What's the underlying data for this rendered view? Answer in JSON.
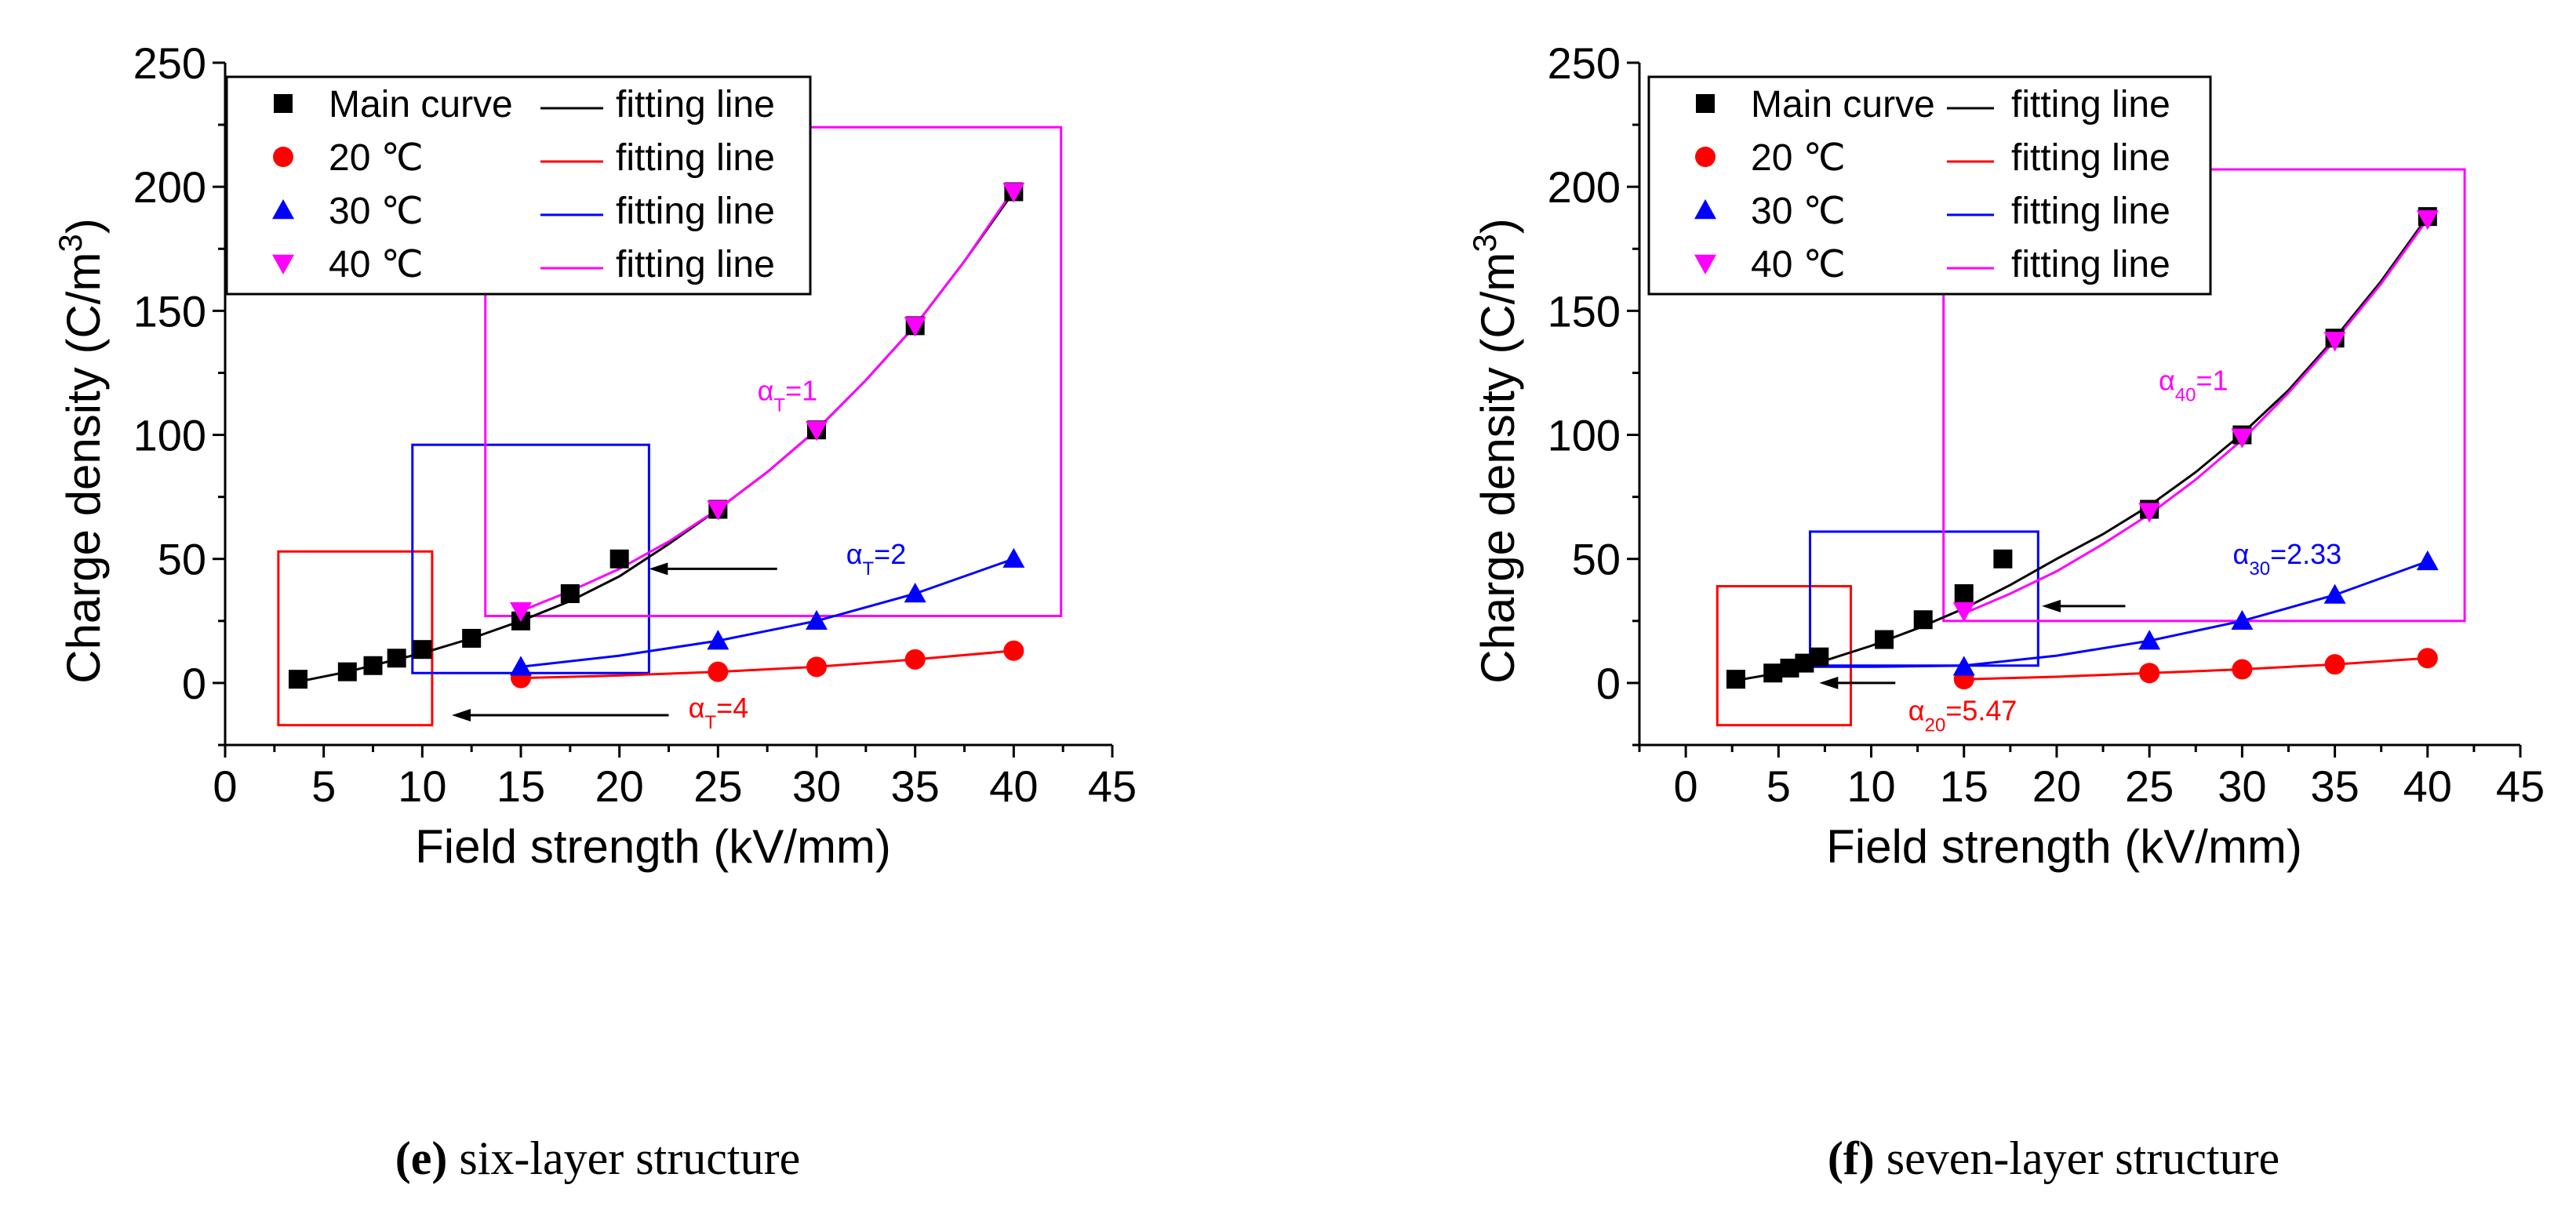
{
  "chart_data": [
    {
      "id": "e",
      "type": "scatter",
      "title": "",
      "xlabel": "Field strength (kV/mm)",
      "ylabel_main": "Charge density (C/m",
      "ylabel_sup": "3",
      "ylabel_close": ")",
      "xlim": [
        0,
        45
      ],
      "ylim": [
        -25,
        250
      ],
      "xticks": [
        0,
        5,
        10,
        15,
        20,
        25,
        30,
        35,
        40,
        45
      ],
      "yticks": [
        0,
        50,
        100,
        150,
        200,
        250
      ],
      "caption_label": "(e)",
      "caption_text": " six-layer structure",
      "legend": [
        {
          "marker_label": "Main curve",
          "line_label": "fitting line",
          "color": "#000000",
          "marker": "square"
        },
        {
          "marker_label": "20 ℃",
          "line_label": "fitting line",
          "color": "#ff0000",
          "marker": "circle"
        },
        {
          "marker_label": "30 ℃",
          "line_label": "fitting line",
          "color": "#0000ff",
          "marker": "triangle-up"
        },
        {
          "marker_label": "40 ℃",
          "line_label": "fitting line",
          "color": "#ff00ff",
          "marker": "triangle-down"
        }
      ],
      "series": [
        {
          "name": "Main curve",
          "color": "#000000",
          "marker": "square",
          "x": [
            3.7,
            6.2,
            7.5,
            8.7,
            10,
            12.5,
            15,
            17.5,
            20,
            25,
            30,
            35,
            40
          ],
          "y": [
            1.5,
            4.5,
            7,
            10,
            13.5,
            18,
            25,
            36,
            50,
            70,
            102,
            144,
            198
          ]
        },
        {
          "name": "20 ℃",
          "color": "#ff0000",
          "marker": "circle",
          "x": [
            15,
            25,
            30,
            35,
            40
          ],
          "y": [
            2,
            4.5,
            6.5,
            9.5,
            13
          ]
        },
        {
          "name": "30 ℃",
          "color": "#0000ff",
          "marker": "triangle-up",
          "x": [
            15,
            25,
            30,
            35,
            40
          ],
          "y": [
            6.5,
            17,
            25,
            36,
            50
          ]
        },
        {
          "name": "40 ℃",
          "color": "#ff00ff",
          "marker": "triangle-down",
          "x": [
            15,
            25,
            30,
            35,
            40
          ],
          "y": [
            29,
            70,
            102,
            144,
            198
          ]
        }
      ],
      "fits": [
        {
          "color": "#000000",
          "x": [
            3.7,
            6.2,
            8.7,
            10,
            12.5,
            15,
            17.5,
            20,
            22.5,
            25,
            27.5,
            30,
            32.5,
            35,
            37.5,
            40
          ],
          "y": [
            0.5,
            4.5,
            9.5,
            12,
            18,
            25,
            33,
            43,
            56,
            70,
            85,
            102,
            122,
            144,
            170,
            198
          ]
        },
        {
          "color": "#ff00ff",
          "x": [
            15,
            17.5,
            20,
            22.5,
            25,
            27.5,
            30,
            32.5,
            35,
            37.5,
            40
          ],
          "y": [
            29,
            37,
            46,
            57,
            70,
            85,
            102,
            122,
            144,
            170,
            199
          ]
        },
        {
          "color": "#0000ff",
          "x": [
            15,
            20,
            25,
            30,
            35,
            40
          ],
          "y": [
            6.5,
            11,
            17,
            25,
            36,
            50
          ]
        },
        {
          "color": "#ff0000",
          "x": [
            15,
            20,
            25,
            30,
            35,
            40
          ],
          "y": [
            2,
            3,
            4.5,
            6.5,
            9.5,
            13
          ]
        }
      ],
      "boxes": [
        {
          "color": "#ff0000",
          "x": [
            2.7,
            10.5
          ],
          "y": [
            -17,
            53
          ]
        },
        {
          "color": "#0000ff",
          "x": [
            9.5,
            21.5
          ],
          "y": [
            4,
            96
          ]
        },
        {
          "color": "#ff00ff",
          "x": [
            13.2,
            42.4
          ],
          "y": [
            27,
            224
          ]
        }
      ],
      "arrows": [
        {
          "color": "#000000",
          "from": [
            28,
            46
          ],
          "to": [
            21.5,
            46
          ]
        },
        {
          "color": "#000000",
          "from": [
            22.5,
            -13
          ],
          "to": [
            11.5,
            -13
          ]
        }
      ],
      "annotations": [
        {
          "base": "α",
          "sub": "T",
          "rest": "=1",
          "color": "#ff00ff",
          "x": 27,
          "y": 114
        },
        {
          "base": "α",
          "sub": "T",
          "rest": "=2",
          "color": "#0000ff",
          "x": 31.5,
          "y": 48
        },
        {
          "base": "α",
          "sub": "T",
          "rest": "=4",
          "color": "#ff0000",
          "x": 23.5,
          "y": -14
        }
      ]
    },
    {
      "id": "f",
      "type": "scatter",
      "title": "",
      "xlabel": "Field strength (kV/mm)",
      "ylabel_main": "Charge density (C/m",
      "ylabel_sup": "3",
      "ylabel_close": ")",
      "xlim": [
        -2.5,
        45
      ],
      "ylim": [
        -25,
        250
      ],
      "xticks": [
        0,
        5,
        10,
        15,
        20,
        25,
        30,
        35,
        40,
        45
      ],
      "yticks": [
        0,
        50,
        100,
        150,
        200,
        250
      ],
      "caption_label": "(f)",
      "caption_text": " seven-layer structure",
      "legend": [
        {
          "marker_label": "Main curve",
          "line_label": "fitting line",
          "color": "#000000",
          "marker": "square"
        },
        {
          "marker_label": "20 ℃",
          "line_label": "fitting line",
          "color": "#ff0000",
          "marker": "circle"
        },
        {
          "marker_label": "30 ℃",
          "line_label": "fitting line",
          "color": "#0000ff",
          "marker": "triangle-up"
        },
        {
          "marker_label": "40 ℃",
          "line_label": "fitting line",
          "color": "#ff00ff",
          "marker": "triangle-down"
        }
      ],
      "series": [
        {
          "name": "Main curve",
          "color": "#000000",
          "marker": "square",
          "x": [
            2.7,
            4.7,
            5.6,
            6.4,
            7.2,
            10.7,
            12.8,
            15,
            17.1,
            25,
            30,
            35,
            40
          ],
          "y": [
            1.5,
            4,
            6,
            8,
            10.5,
            17.5,
            25.5,
            36,
            50,
            70,
            100,
            139,
            188
          ]
        },
        {
          "name": "20 ℃",
          "color": "#ff0000",
          "marker": "circle",
          "x": [
            15,
            25,
            30,
            35,
            40
          ],
          "y": [
            1.5,
            4,
            5.5,
            7.5,
            10
          ]
        },
        {
          "name": "30 ℃",
          "color": "#0000ff",
          "marker": "triangle-up",
          "x": [
            15,
            25,
            30,
            35,
            40
          ],
          "y": [
            6.5,
            17,
            25,
            35.5,
            49
          ]
        },
        {
          "name": "40 ℃",
          "color": "#ff00ff",
          "marker": "triangle-down",
          "x": [
            15,
            25,
            30,
            35,
            40
          ],
          "y": [
            29,
            69,
            99,
            138,
            187
          ]
        }
      ],
      "fits": [
        {
          "color": "#000000",
          "x": [
            2.7,
            5,
            7.5,
            10,
            12.5,
            15,
            17.5,
            20,
            22.5,
            25,
            27.5,
            30,
            32.5,
            35,
            37.5,
            40
          ],
          "y": [
            1,
            4,
            9,
            15,
            22,
            30,
            39.5,
            50,
            60,
            71.5,
            85,
            100.5,
            118,
            139,
            162,
            188
          ]
        },
        {
          "color": "#ff00ff",
          "x": [
            15,
            17.5,
            20,
            22.5,
            25,
            27.5,
            30,
            32.5,
            35,
            37.5,
            40
          ],
          "y": [
            28,
            36,
            45,
            56,
            68,
            82,
            98,
            117,
            138,
            161,
            187
          ]
        },
        {
          "color": "#0000ff",
          "x": [
            6.5,
            10,
            15,
            20,
            25,
            30,
            35,
            40
          ],
          "y": [
            6.5,
            6.5,
            7,
            11,
            17,
            25,
            35.5,
            49
          ]
        },
        {
          "color": "#ff0000",
          "x": [
            15,
            20,
            25,
            30,
            35,
            40
          ],
          "y": [
            1.5,
            2.5,
            4,
            5.5,
            7.5,
            10
          ]
        }
      ],
      "boxes": [
        {
          "color": "#ff0000",
          "x": [
            1.7,
            8.9
          ],
          "y": [
            -17,
            39
          ]
        },
        {
          "color": "#0000ff",
          "x": [
            6.7,
            19
          ],
          "y": [
            7,
            61
          ]
        },
        {
          "color": "#ff00ff",
          "x": [
            13.9,
            42
          ],
          "y": [
            25,
            207
          ]
        }
      ],
      "arrows": [
        {
          "color": "#000000",
          "from": [
            23.7,
            31
          ],
          "to": [
            19.2,
            31
          ]
        },
        {
          "color": "#000000",
          "from": [
            11.3,
            0
          ],
          "to": [
            7.2,
            0
          ]
        }
      ],
      "annotations": [
        {
          "base": "α",
          "sub": "40",
          "rest": "=1",
          "color": "#ff00ff",
          "x": 25.5,
          "y": 118
        },
        {
          "base": "α",
          "sub": "30",
          "rest": "=2.33",
          "color": "#0000ff",
          "x": 29.5,
          "y": 48
        },
        {
          "base": "α",
          "sub": "20",
          "rest": "=5.47",
          "color": "#ff0000",
          "x": 12,
          "y": -15
        }
      ]
    }
  ]
}
